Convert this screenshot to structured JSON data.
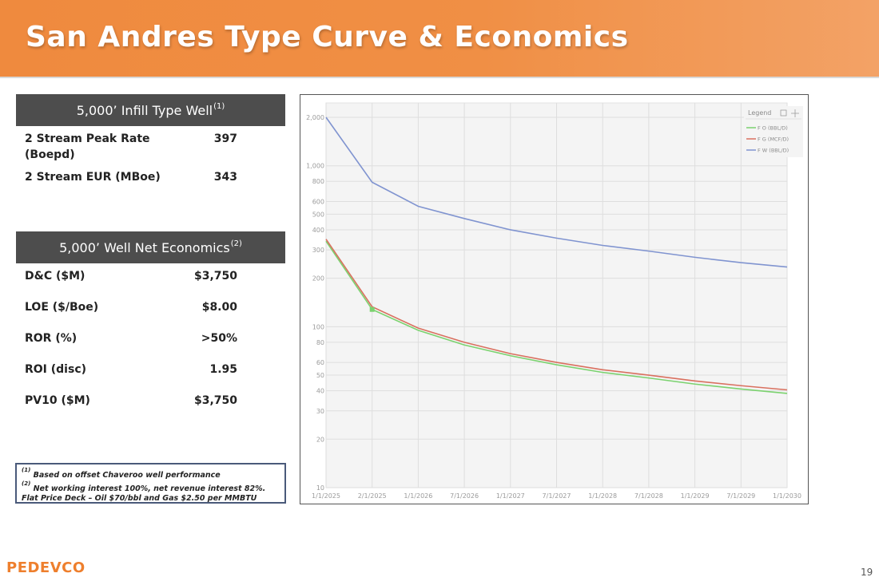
{
  "slide": {
    "title": "San Andres Type Curve & Economics",
    "page_number": "19",
    "logo_text": "PEDEVCO"
  },
  "type_well": {
    "header": "5,000’ Infill Type Well",
    "header_sup": "(1)",
    "rows": [
      {
        "label": "2 Stream Peak Rate (Boepd)",
        "value": "397"
      },
      {
        "label": "2 Stream EUR (MBoe)",
        "value": "343"
      }
    ]
  },
  "economics": {
    "header": "5,000’ Well Net Economics",
    "header_sup": "(2)",
    "rows": [
      {
        "label": "D&C ($M)",
        "value": "$3,750"
      },
      {
        "label": "LOE ($/Boe)",
        "value": "$8.00"
      },
      {
        "label": "ROR (%)",
        "value": ">50%"
      },
      {
        "label": "ROI (disc)",
        "value": "1.95"
      },
      {
        "label": "PV10 ($M)",
        "value": "$3,750"
      }
    ]
  },
  "notes": {
    "note1_sup": "(1)",
    "note1": "Based on offset Chaveroo well performance",
    "note2_sup": "(2)",
    "note2": "Net working interest 100%, net revenue interest 82%. Flat Price Deck – Oil $70/bbl and Gas $2.50 per MMBTU"
  },
  "colors": {
    "header_orange": "#f08f45",
    "table_header": "#4d4d4d",
    "oil": "#7bd26f",
    "gas": "#d9705f",
    "water": "#8094d0"
  },
  "chart_data": {
    "type": "line",
    "y_scale": "log",
    "ylim": [
      10,
      2000
    ],
    "y_ticks": [
      10,
      20,
      30,
      40,
      50,
      60,
      80,
      100,
      200,
      300,
      400,
      500,
      600,
      800,
      1000,
      2000
    ],
    "y_tick_labels": [
      "10",
      "20",
      "30",
      "40",
      "50",
      "60",
      "80",
      "100",
      "200",
      "300",
      "400",
      "500",
      "600",
      "800",
      "1,000",
      "2,000"
    ],
    "x_tick_labels": [
      "1/1/2025",
      "2/1/2025",
      "1/1/2026",
      "7/1/2026",
      "1/1/2027",
      "7/1/2027",
      "1/1/2028",
      "7/1/2028",
      "1/1/2029",
      "7/1/2029",
      "1/1/2030"
    ],
    "grid": true,
    "legend_title": "Legend",
    "legend_position": "top-right",
    "series": [
      {
        "name": "F O (BBL/D)",
        "color": "#7bd26f",
        "values": [
          340,
          128,
          95,
          77,
          66,
          58,
          52,
          48,
          44,
          41,
          38.5
        ]
      },
      {
        "name": "F G (MCF/D)",
        "color": "#d9705f",
        "values": [
          350,
          133,
          98,
          80,
          68,
          60,
          54,
          50,
          46,
          43,
          40.5
        ]
      },
      {
        "name": "F W (BBL/D)",
        "color": "#8094d0",
        "values": [
          2000,
          790,
          560,
          470,
          400,
          355,
          320,
          295,
          270,
          250,
          235
        ]
      }
    ]
  }
}
